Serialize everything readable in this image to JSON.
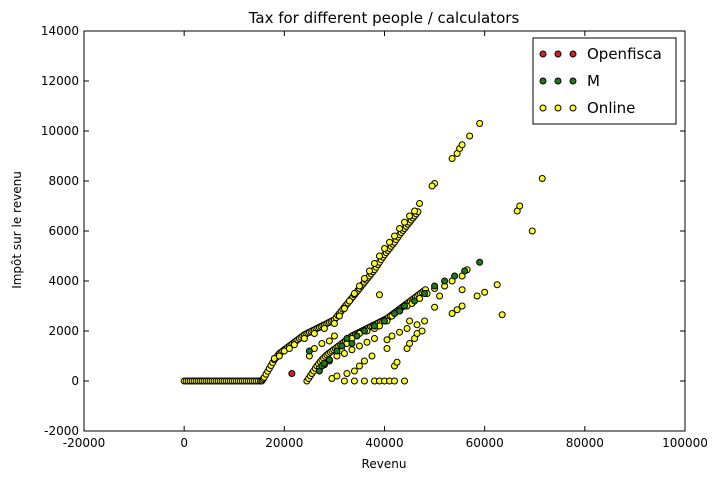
{
  "chart_data": {
    "type": "scatter",
    "title": "Tax for different people / calculators",
    "xlabel": "Revenu",
    "ylabel": "Impôt sur le revenu",
    "xlim": [
      -20000,
      100000
    ],
    "ylim": [
      -2000,
      14000
    ],
    "xticks": [
      -20000,
      0,
      20000,
      40000,
      60000,
      80000,
      100000
    ],
    "yticks": [
      -2000,
      0,
      2000,
      4000,
      6000,
      8000,
      10000,
      12000,
      14000
    ],
    "grid": false,
    "legend_position": "top-right",
    "series": [
      {
        "name": "Openfisca",
        "color": "#d62020",
        "points": [
          [
            21500,
            300
          ]
        ]
      },
      {
        "name": "M",
        "color": "#1e7a1e",
        "points": [
          [
            25000,
            1200
          ],
          [
            27000,
            400
          ],
          [
            27500,
            600
          ],
          [
            28000,
            700
          ],
          [
            29000,
            850
          ],
          [
            30500,
            1200
          ],
          [
            31500,
            1400
          ],
          [
            32500,
            1700
          ],
          [
            33500,
            1500
          ],
          [
            34500,
            1800
          ],
          [
            36000,
            2000
          ],
          [
            38000,
            2200
          ],
          [
            40000,
            2400
          ],
          [
            42000,
            2700
          ],
          [
            43000,
            2800
          ],
          [
            44000,
            3000
          ],
          [
            46000,
            3200
          ],
          [
            48000,
            3500
          ],
          [
            50000,
            3800
          ],
          [
            52000,
            4000
          ],
          [
            54000,
            4200
          ],
          [
            56000,
            4400
          ],
          [
            59000,
            4750
          ]
        ]
      },
      {
        "name": "Online",
        "color": "#ffff22",
        "points": [
          [
            18000,
            900
          ],
          [
            19000,
            1000
          ],
          [
            20000,
            1200
          ],
          [
            21000,
            1300
          ],
          [
            22000,
            1450
          ],
          [
            24000,
            1700
          ],
          [
            26000,
            1900
          ],
          [
            28000,
            2100
          ],
          [
            30000,
            2300
          ],
          [
            31000,
            2600
          ],
          [
            32000,
            2900
          ],
          [
            33000,
            3200
          ],
          [
            34000,
            3500
          ],
          [
            35000,
            3800
          ],
          [
            36000,
            4100
          ],
          [
            37000,
            4400
          ],
          [
            38000,
            4700
          ],
          [
            39000,
            5000
          ],
          [
            40000,
            5300
          ],
          [
            41000,
            5550
          ],
          [
            42000,
            5800
          ],
          [
            43000,
            6100
          ],
          [
            44000,
            6350
          ],
          [
            45000,
            6600
          ],
          [
            46000,
            6800
          ],
          [
            47000,
            7100
          ],
          [
            50000,
            7900
          ],
          [
            49500,
            7800
          ],
          [
            53500,
            8900
          ],
          [
            54500,
            9100
          ],
          [
            55000,
            9300
          ],
          [
            55500,
            9450
          ],
          [
            57000,
            9800
          ],
          [
            59000,
            10300
          ],
          [
            25000,
            1000
          ],
          [
            26000,
            1300
          ],
          [
            27500,
            1500
          ],
          [
            29000,
            1600
          ],
          [
            30000,
            1800
          ],
          [
            31500,
            1200
          ],
          [
            32500,
            1500
          ],
          [
            33500,
            1700
          ],
          [
            35000,
            1900
          ],
          [
            36500,
            2000
          ],
          [
            38000,
            2100
          ],
          [
            39000,
            2200
          ],
          [
            40500,
            2400
          ],
          [
            41500,
            2600
          ],
          [
            43000,
            2800
          ],
          [
            44500,
            3000
          ],
          [
            45500,
            3100
          ],
          [
            47000,
            3300
          ],
          [
            48500,
            3500
          ],
          [
            50000,
            3700
          ],
          [
            52000,
            3800
          ],
          [
            53500,
            4000
          ],
          [
            55500,
            4200
          ],
          [
            56500,
            4450
          ],
          [
            27000,
            500
          ],
          [
            28000,
            650
          ],
          [
            29000,
            800
          ],
          [
            30500,
            1000
          ],
          [
            32000,
            1100
          ],
          [
            33500,
            1250
          ],
          [
            35000,
            1400
          ],
          [
            36500,
            1550
          ],
          [
            38000,
            1700
          ],
          [
            40500,
            1650
          ],
          [
            41500,
            1800
          ],
          [
            43000,
            1950
          ],
          [
            44500,
            2100
          ],
          [
            46500,
            2250
          ],
          [
            48000,
            2400
          ],
          [
            50000,
            2950
          ],
          [
            51000,
            3400
          ],
          [
            53500,
            2700
          ],
          [
            54500,
            2850
          ],
          [
            55500,
            3000
          ],
          [
            55500,
            3650
          ],
          [
            58500,
            3400
          ],
          [
            60000,
            3550
          ],
          [
            62500,
            3850
          ],
          [
            63500,
            2650
          ],
          [
            29500,
            100
          ],
          [
            30500,
            200
          ],
          [
            32500,
            300
          ],
          [
            34000,
            400
          ],
          [
            35000,
            600
          ],
          [
            36000,
            800
          ],
          [
            37500,
            1000
          ],
          [
            39000,
            3450
          ],
          [
            40500,
            1300
          ],
          [
            42000,
            600
          ],
          [
            42500,
            750
          ],
          [
            44500,
            1300
          ],
          [
            45000,
            1500
          ],
          [
            46000,
            1700
          ],
          [
            46500,
            1900
          ],
          [
            47500,
            2000
          ],
          [
            45000,
            2400
          ],
          [
            32000,
            0
          ],
          [
            34000,
            0
          ],
          [
            36000,
            0
          ],
          [
            38000,
            0
          ],
          [
            39000,
            0
          ],
          [
            40000,
            0
          ],
          [
            41000,
            0
          ],
          [
            42000,
            0
          ],
          [
            44000,
            0
          ],
          [
            66500,
            6800
          ],
          [
            67000,
            7000
          ],
          [
            69500,
            6000
          ],
          [
            71500,
            8100
          ]
        ]
      }
    ],
    "zero_line": {
      "color": "#000000",
      "x_start": 0,
      "x_end": 31000
    },
    "upper_band": {
      "color": "#000000",
      "points": [
        [
          15500,
          0
        ],
        [
          16000,
          150
        ],
        [
          17000,
          500
        ],
        [
          18000,
          850
        ],
        [
          19000,
          1100
        ],
        [
          20000,
          1250
        ],
        [
          21000,
          1400
        ],
        [
          22000,
          1550
        ],
        [
          23000,
          1700
        ],
        [
          24000,
          1850
        ],
        [
          25000,
          1950
        ],
        [
          26000,
          2050
        ],
        [
          27000,
          2150
        ],
        [
          28000,
          2250
        ],
        [
          29000,
          2350
        ],
        [
          30000,
          2450
        ],
        [
          31000,
          2700
        ],
        [
          32000,
          2950
        ],
        [
          33000,
          3200
        ],
        [
          34000,
          3450
        ],
        [
          35000,
          3700
        ],
        [
          36000,
          3950
        ],
        [
          37000,
          4200
        ],
        [
          38000,
          4450
        ],
        [
          39000,
          4750
        ],
        [
          40000,
          5050
        ],
        [
          41000,
          5300
        ],
        [
          42000,
          5550
        ],
        [
          43000,
          5850
        ],
        [
          44000,
          6100
        ],
        [
          45000,
          6350
        ],
        [
          46000,
          6600
        ],
        [
          47000,
          6850
        ]
      ]
    },
    "lower_band": {
      "color": "#000000",
      "points": [
        [
          24500,
          0
        ],
        [
          25500,
          300
        ],
        [
          26500,
          600
        ],
        [
          27500,
          850
        ],
        [
          28500,
          1050
        ],
        [
          29500,
          1200
        ],
        [
          30500,
          1350
        ],
        [
          31500,
          1500
        ],
        [
          32500,
          1650
        ],
        [
          33500,
          1800
        ],
        [
          34500,
          1900
        ],
        [
          35500,
          2000
        ],
        [
          36500,
          2100
        ],
        [
          37500,
          2200
        ],
        [
          38500,
          2300
        ],
        [
          39500,
          2400
        ],
        [
          40500,
          2500
        ],
        [
          41500,
          2650
        ],
        [
          42500,
          2800
        ],
        [
          43500,
          2950
        ],
        [
          44500,
          3100
        ],
        [
          45500,
          3250
        ],
        [
          46500,
          3400
        ],
        [
          47500,
          3550
        ],
        [
          48500,
          3700
        ]
      ]
    }
  }
}
